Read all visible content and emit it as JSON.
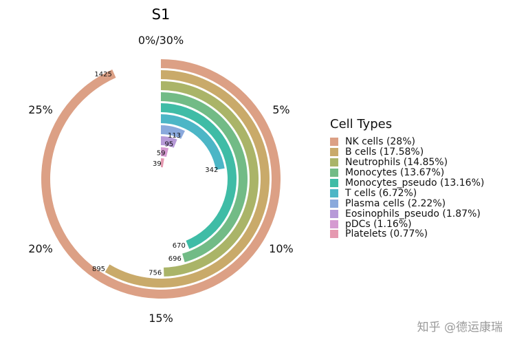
{
  "chart_data": {
    "type": "radial_bar",
    "title": "S1",
    "angle_ticks": [
      "0%/30%",
      "5%",
      "10%",
      "15%",
      "20%",
      "25%"
    ],
    "angle_max_percent": 30,
    "legend_title": "Cell Types",
    "series": [
      {
        "name": "NK cells (28%)",
        "percent": 28.0,
        "count": 1425,
        "color": "#dca085"
      },
      {
        "name": "B cells (17.58%)",
        "percent": 17.58,
        "count": 895,
        "color": "#c9aa6a"
      },
      {
        "name": "Neutrophils (14.85%)",
        "percent": 14.85,
        "count": 756,
        "color": "#aab468"
      },
      {
        "name": "Monocytes (13.67%)",
        "percent": 13.67,
        "count": 696,
        "color": "#72bb86"
      },
      {
        "name": "Monocytes_pseudo (13.16%)",
        "percent": 13.16,
        "count": 670,
        "color": "#3fbca6"
      },
      {
        "name": "T cells (6.72%)",
        "percent": 6.72,
        "count": 342,
        "color": "#4cb6c6"
      },
      {
        "name": "Plasma cells (2.22%)",
        "percent": 2.22,
        "count": 113,
        "color": "#8aa9dc"
      },
      {
        "name": "Eosinophils_pseudo (1.87%)",
        "percent": 1.87,
        "count": 95,
        "color": "#b79ad8"
      },
      {
        "name": "pDCs (1.16%)",
        "percent": 1.16,
        "count": 59,
        "color": "#d59ad1"
      },
      {
        "name": "Platelets (0.77%)",
        "percent": 0.77,
        "count": 39,
        "color": "#e599b0"
      }
    ]
  },
  "watermark": "知乎 @德运康瑞"
}
